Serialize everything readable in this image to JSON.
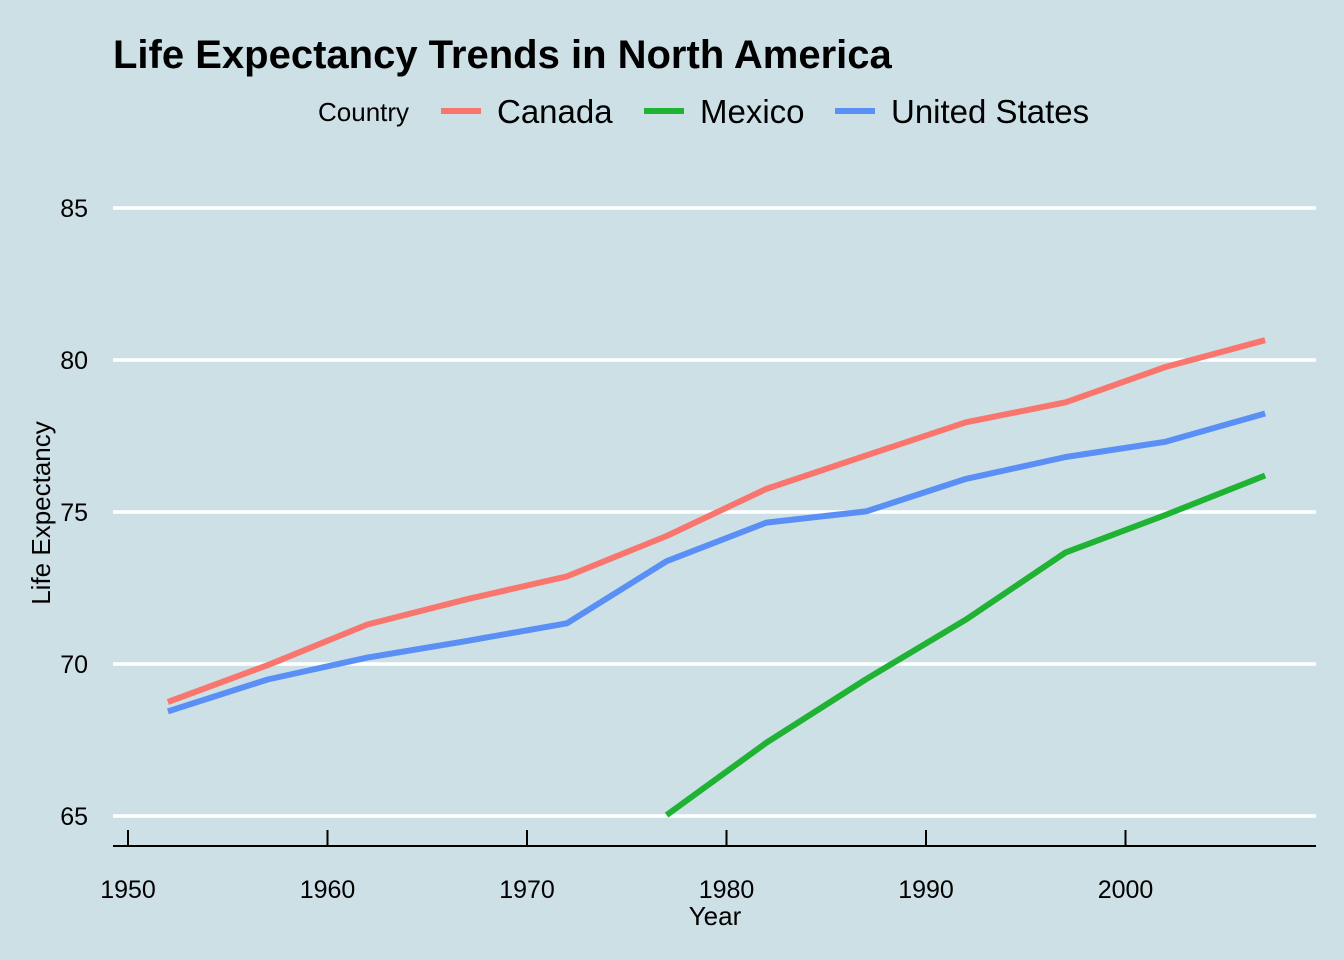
{
  "chart_data": {
    "type": "line",
    "title": "Life Expectancy Trends in North America",
    "xlabel": "Year",
    "ylabel": "Life Expectancy",
    "legend_title": "Country",
    "legend_position": "top",
    "grid": "horizontal-major",
    "xlim": [
      1950,
      2007
    ],
    "ylim": [
      65,
      85
    ],
    "x_ticks": [
      1950,
      1960,
      1970,
      1980,
      1990,
      2000
    ],
    "y_ticks": [
      65,
      70,
      75,
      80,
      85
    ],
    "series": [
      {
        "name": "Canada",
        "color": "#f8766d",
        "x": [
          1952,
          1957,
          1962,
          1967,
          1972,
          1977,
          1982,
          1987,
          1992,
          1997,
          2002,
          2007
        ],
        "y": [
          68.75,
          69.96,
          71.3,
          72.13,
          72.88,
          74.21,
          75.76,
          76.86,
          77.95,
          78.61,
          79.77,
          80.65
        ]
      },
      {
        "name": "Mexico",
        "color": "#1fb233",
        "x": [
          1977,
          1982,
          1987,
          1992,
          1997,
          2002,
          2007
        ],
        "y": [
          65.03,
          67.41,
          69.5,
          71.46,
          73.67,
          74.9,
          76.2
        ]
      },
      {
        "name": "United States",
        "color": "#5a8ff5",
        "x": [
          1952,
          1957,
          1962,
          1967,
          1972,
          1977,
          1982,
          1987,
          1992,
          1997,
          2002,
          2007
        ],
        "y": [
          68.44,
          69.49,
          70.21,
          70.76,
          71.34,
          73.38,
          74.65,
          75.02,
          76.09,
          76.81,
          77.31,
          78.24
        ]
      }
    ]
  }
}
